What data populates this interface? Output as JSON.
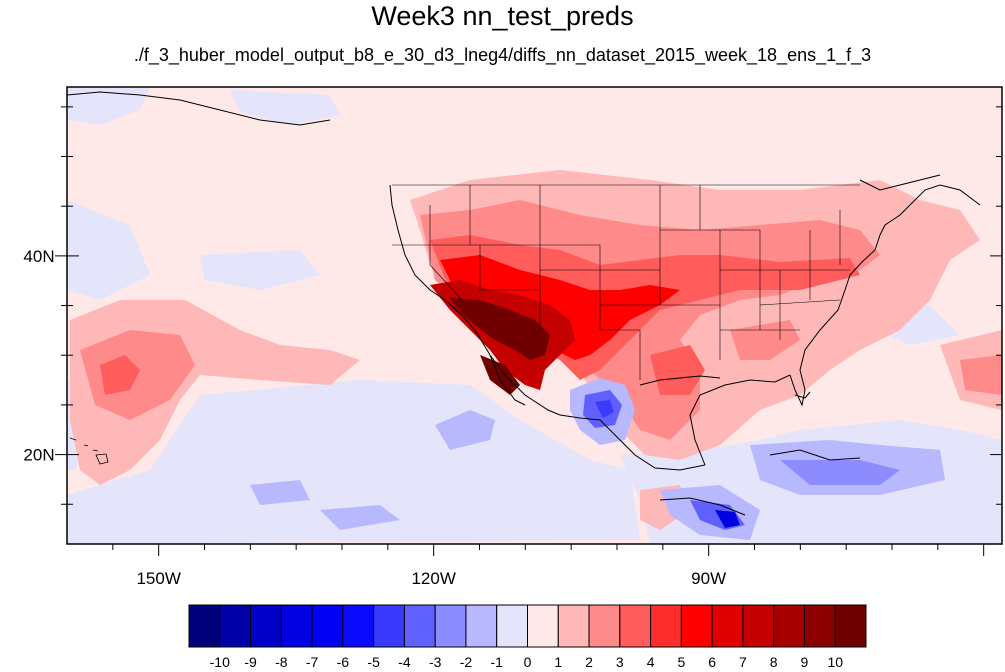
{
  "title": "Week3 nn_test_preds",
  "subtitle": "./f_3_huber_model_output_b8_e_30_d3_lneg4/diffs_nn_dataset_2015_week_18_ens_1_f_3",
  "map": {
    "lon_range": [
      -160,
      -58
    ],
    "lat_range": [
      11,
      57
    ],
    "lon_ticks": [
      {
        "value": -150,
        "label": "150W"
      },
      {
        "value": -120,
        "label": "120W"
      },
      {
        "value": -90,
        "label": "90W"
      }
    ],
    "lat_ticks": [
      {
        "value": 40,
        "label": "40N"
      },
      {
        "value": 20,
        "label": "20N"
      }
    ],
    "background_color": "#ffe8e8"
  },
  "colorbar": {
    "labels": [
      "-10",
      "-9",
      "-8",
      "-7",
      "-6",
      "-5",
      "-4",
      "-3",
      "-2",
      "-1",
      "0",
      "1",
      "2",
      "3",
      "4",
      "5",
      "6",
      "7",
      "8",
      "9",
      "10"
    ],
    "colors": [
      "#00007a",
      "#0000a8",
      "#0000c8",
      "#0000e0",
      "#0000f5",
      "#0a0aff",
      "#3a3aff",
      "#6060ff",
      "#8c8cff",
      "#b8b8ff",
      "#e4e4fa",
      "#ffe8e8",
      "#ffb8b8",
      "#ff8a8a",
      "#ff5c5c",
      "#ff2e2e",
      "#ff0000",
      "#e00000",
      "#c40000",
      "#a80000",
      "#8c0000",
      "#700000"
    ]
  }
}
